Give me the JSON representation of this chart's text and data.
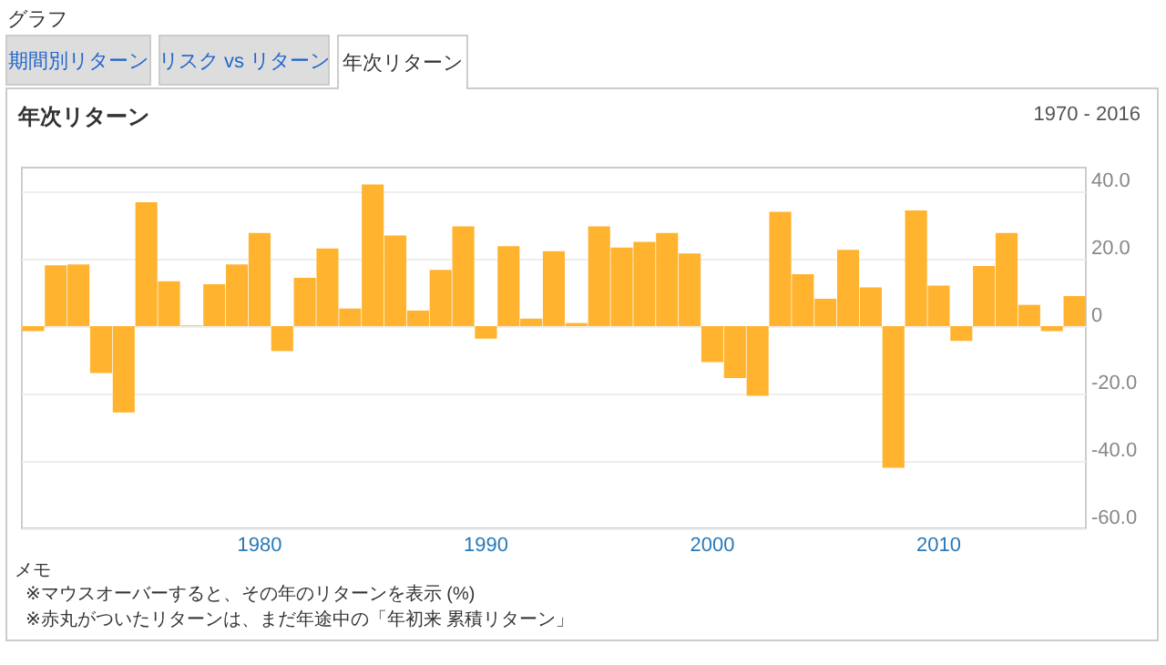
{
  "chart_data": {
    "type": "bar",
    "title": "年次リターン",
    "subtitle": "1970 - 2016",
    "annotations": [
      "グラフ",
      "期間別リターン",
      "リスク vs リターン",
      "年次リターン",
      "メモ",
      "※マウスオーバーすると、その年のリターンを表示 (%)",
      "※赤丸がついたリターンは、まだ年途中の「年初来 累積リターン」"
    ],
    "categories": [
      null,
      null,
      null,
      null,
      null,
      null,
      null,
      null,
      null,
      null,
      "1980",
      null,
      null,
      null,
      null,
      null,
      null,
      null,
      null,
      null,
      "1990",
      null,
      null,
      null,
      null,
      null,
      null,
      null,
      null,
      null,
      "2000",
      null,
      null,
      null,
      null,
      null,
      null,
      null,
      null,
      null,
      "2010",
      null,
      null,
      null,
      null,
      null,
      null
    ],
    "values": [
      -1.5,
      18,
      18.3,
      -13.9,
      -25.6,
      36.7,
      13.3,
      0.2,
      12.4,
      18.3,
      27.6,
      -7.4,
      14.3,
      23,
      5.2,
      42,
      26.9,
      4.6,
      16.7,
      29.6,
      -3.7,
      23.7,
      2.2,
      22.2,
      0.9,
      29.6,
      23.3,
      25,
      27.6,
      21.5,
      -10.7,
      -15.4,
      -20.7,
      33.9,
      15.4,
      8.1,
      22.6,
      11.5,
      -42,
      34.3,
      12,
      -4.4,
      17.8,
      27.6,
      6.3,
      -1.5,
      8.9
    ],
    "color": "#ffb32f",
    "ylim": [
      -60,
      47
    ],
    "yticks": [
      {
        "value": -60,
        "label": "-60.0"
      },
      {
        "value": -40,
        "label": "-40.0"
      },
      {
        "value": -20,
        "label": "-20.0"
      },
      0,
      {
        "value": 20,
        "label": "20.0"
      },
      {
        "value": 40,
        "label": "40.0"
      }
    ],
    "grid": "y"
  }
}
